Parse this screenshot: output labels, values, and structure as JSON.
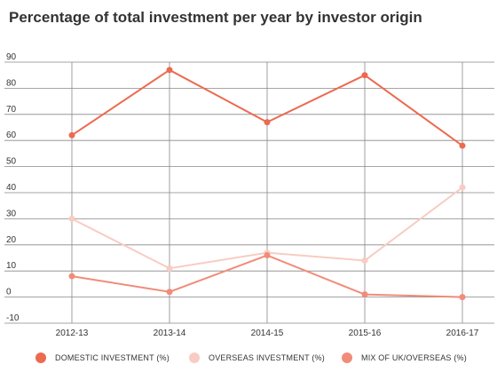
{
  "chart_data": {
    "type": "line",
    "title": "Percentage of total investment per year by investor origin",
    "categories": [
      "2012-13",
      "2013-14",
      "2014-15",
      "2015-16",
      "2016-17"
    ],
    "ylim": [
      -10,
      90
    ],
    "yticks": [
      "90",
      "80",
      "70",
      "60",
      "50",
      "40",
      "30",
      "20",
      "10",
      "0",
      "-10"
    ],
    "grid": true,
    "legend_position": "bottom",
    "series": [
      {
        "name": "DOMESTIC INVESTMENT (%)",
        "color": "#ec6a50",
        "values": [
          62,
          87,
          67,
          85,
          58
        ]
      },
      {
        "name": "OVERSEAS INVESTMENT (%)",
        "color": "#f8ccc2",
        "values": [
          30,
          11,
          17,
          14,
          42
        ]
      },
      {
        "name": "MIX OF UK/OVERSEAS (%)",
        "color": "#f08c79",
        "values": [
          8,
          2,
          16,
          1,
          0
        ]
      }
    ]
  }
}
